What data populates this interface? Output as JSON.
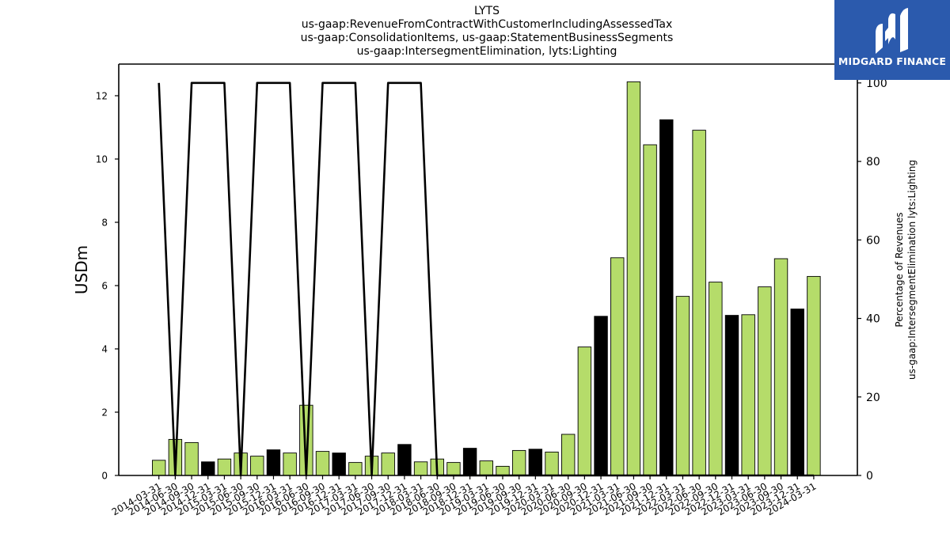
{
  "title": {
    "line1": "LYTS",
    "line2": "us-gaap:RevenueFromContractWithCustomerIncludingAssessedTax",
    "line3": "us-gaap:ConsolidationItems, us-gaap:StatementBusinessSegments",
    "line4": "us-gaap:IntersegmentElimination, lyts:Lighting"
  },
  "logo": {
    "text": "MIDGARD FINANCE",
    "bg_color": "#2b5aad",
    "icon": "midgard-logo-icon"
  },
  "chart_data": {
    "type": "bar",
    "ylabel_left": "USDm",
    "ylabel_right": "Percentage of Revenues\nus-gaap:IntersegmentElimination lyts:Lighting",
    "ylim_left": [
      0,
      13
    ],
    "ylim_right": [
      0,
      104.8
    ],
    "yticks_left": [
      0,
      2,
      4,
      6,
      8,
      10,
      12
    ],
    "yticks_right": [
      0,
      20,
      40,
      60,
      80,
      100
    ],
    "grid": false,
    "bar_color": "#b5dc6a",
    "highlight_color": "#000000",
    "categories": [
      "2014-03-31",
      "2014-06-30",
      "2014-09-30",
      "2014-12-31",
      "2015-03-31",
      "2015-06-30",
      "2015-09-30",
      "2015-12-31",
      "2016-03-31",
      "2016-06-30",
      "2016-09-30",
      "2016-12-31",
      "2017-03-31",
      "2017-06-30",
      "2017-09-30",
      "2017-12-31",
      "2018-03-31",
      "2018-06-30",
      "2018-09-30",
      "2018-12-31",
      "2019-03-31",
      "2019-06-30",
      "2019-09-30",
      "2019-12-31",
      "2020-03-31",
      "2020-06-30",
      "2020-09-30",
      "2020-12-31",
      "2021-03-31",
      "2021-06-30",
      "2021-09-30",
      "2021-12-31",
      "2022-03-31",
      "2022-06-30",
      "2022-09-30",
      "2022-12-31",
      "2023-03-31",
      "2023-06-30",
      "2023-09-30",
      "2023-12-31",
      "2024-03-31"
    ],
    "values": [
      0.48,
      1.14,
      1.04,
      0.43,
      0.52,
      0.71,
      0.61,
      0.81,
      0.71,
      2.22,
      0.76,
      0.71,
      0.41,
      0.61,
      0.71,
      0.98,
      0.43,
      0.52,
      0.41,
      0.86,
      0.46,
      0.29,
      0.79,
      0.83,
      0.74,
      1.3,
      4.06,
      5.03,
      6.88,
      12.44,
      10.45,
      11.24,
      5.66,
      10.91,
      6.11,
      5.06,
      5.08,
      5.96,
      6.85,
      5.26,
      6.29
    ],
    "highlight": [
      false,
      false,
      false,
      true,
      false,
      false,
      false,
      true,
      false,
      false,
      false,
      true,
      false,
      false,
      false,
      true,
      false,
      false,
      false,
      true,
      false,
      false,
      false,
      true,
      false,
      false,
      false,
      true,
      false,
      false,
      false,
      true,
      false,
      false,
      false,
      true,
      false,
      false,
      false,
      true,
      false
    ],
    "series": [
      {
        "name": "Percentage of Revenues us-gaap:IntersegmentElimination lyts:Lighting",
        "type": "line",
        "axis": "right",
        "color": "#000000",
        "values": [
          100,
          0,
          100,
          100,
          100,
          0,
          100,
          100,
          100,
          0,
          100,
          100,
          100,
          0,
          100,
          100,
          100,
          0,
          0,
          0,
          0,
          0,
          0,
          0,
          0,
          0,
          0,
          0,
          0,
          0,
          0,
          0,
          0,
          0,
          0,
          0,
          0,
          0,
          0,
          0,
          0
        ]
      }
    ]
  }
}
